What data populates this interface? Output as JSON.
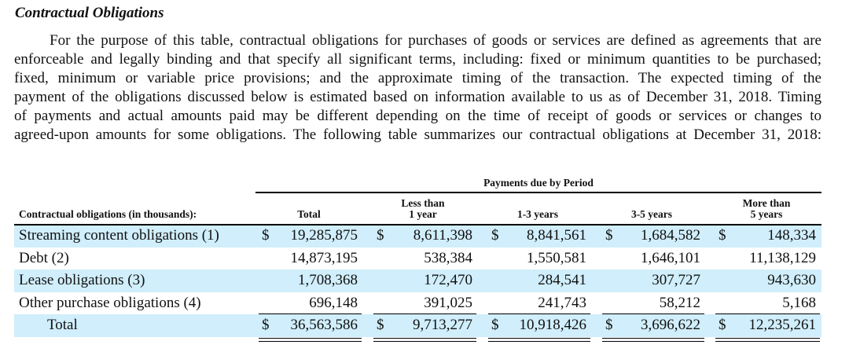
{
  "section": {
    "title": "Contractual Obligations",
    "paragraph_lines": [
      "For the purpose of this table, contractual obligations for purchases of goods or services are defined as agreements that are",
      "enforceable and legally binding and that specify all significant terms, including: fixed or minimum quantities to be purchased;",
      "fixed, minimum or variable price provisions; and the approximate timing of the transaction. The expected timing of the",
      "payment of the obligations discussed below is estimated based on information available to us as of December 31, 2018.  Timing",
      "of payments and actual amounts paid may be different depending on the time of receipt of goods or services or changes to",
      "agreed-upon amounts for some obligations.  The following table summarizes our contractual obligations at December 31, 2018:"
    ]
  },
  "table": {
    "group_header": "Payments due by Period",
    "columns": [
      {
        "lines": [
          "Contractual obligations (in thousands):"
        ]
      },
      {
        "lines": [
          "Total"
        ]
      },
      {
        "lines": [
          "Less than",
          "1 year"
        ]
      },
      {
        "lines": [
          "1-3 years"
        ]
      },
      {
        "lines": [
          "3-5 years"
        ]
      },
      {
        "lines": [
          "More than",
          "5 years"
        ]
      }
    ],
    "rows": [
      {
        "label": "Streaming content obligations (1)",
        "cells": [
          {
            "symbol": "$",
            "amount": "19,285,875"
          },
          {
            "symbol": "$",
            "amount": "8,611,398"
          },
          {
            "symbol": "$",
            "amount": "8,841,561"
          },
          {
            "symbol": "$",
            "amount": "1,684,582"
          },
          {
            "symbol": "$",
            "amount": "148,334"
          }
        ]
      },
      {
        "label": "Debt (2)",
        "cells": [
          {
            "amount": "14,873,195"
          },
          {
            "amount": "538,384"
          },
          {
            "amount": "1,550,581"
          },
          {
            "amount": "1,646,101"
          },
          {
            "amount": "11,138,129"
          }
        ]
      },
      {
        "label": "Lease obligations (3)",
        "cells": [
          {
            "amount": "1,708,368"
          },
          {
            "amount": "172,470"
          },
          {
            "amount": "284,541"
          },
          {
            "amount": "307,727"
          },
          {
            "amount": "943,630"
          }
        ]
      },
      {
        "label": "Other purchase obligations (4)",
        "cells": [
          {
            "amount": "696,148"
          },
          {
            "amount": "391,025"
          },
          {
            "amount": "241,743"
          },
          {
            "amount": "58,212"
          },
          {
            "amount": "5,168"
          }
        ]
      },
      {
        "label": "Total",
        "cells": [
          {
            "symbol": "$",
            "amount": "36,563,586"
          },
          {
            "symbol": "$",
            "amount": "9,713,277"
          },
          {
            "symbol": "$",
            "amount": "10,918,426"
          },
          {
            "symbol": "$",
            "amount": "3,696,622"
          },
          {
            "symbol": "$",
            "amount": "12,235,261"
          }
        ]
      }
    ]
  }
}
